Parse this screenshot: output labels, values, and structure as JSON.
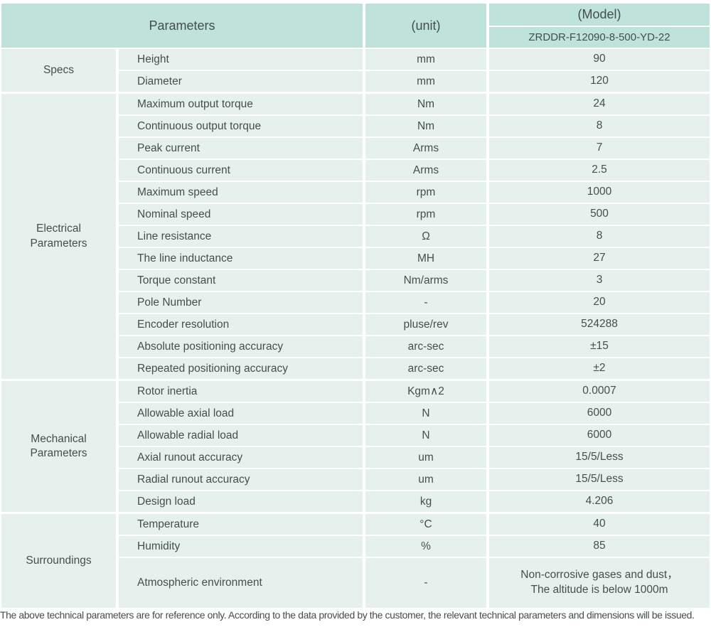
{
  "colors": {
    "header_bg": "#bfe2da",
    "cell_bg": "#e6f1ee",
    "page_bg": "#ffffff",
    "text": "#454e4c"
  },
  "header": {
    "parameters_label": "Parameters",
    "unit_label": "(unit)",
    "model_label": "(Model)",
    "model_value": "ZRDDR-F12090-8-500-YD-22"
  },
  "sections": [
    {
      "name": "Specs",
      "rows": [
        {
          "param": "Height",
          "unit": "mm",
          "value": "90"
        },
        {
          "param": "Diameter",
          "unit": "mm",
          "value": "120"
        }
      ]
    },
    {
      "name": "Electrical Parameters",
      "rows": [
        {
          "param": "Maximum output torque",
          "unit": "Nm",
          "value": "24"
        },
        {
          "param": "Continuous output torque",
          "unit": "Nm",
          "value": "8"
        },
        {
          "param": "Peak current",
          "unit": "Arms",
          "value": "7"
        },
        {
          "param": "Continuous current",
          "unit": "Arms",
          "value": "2.5"
        },
        {
          "param": "Maximum speed",
          "unit": "rpm",
          "value": "1000"
        },
        {
          "param": "Nominal speed",
          "unit": "rpm",
          "value": "500"
        },
        {
          "param": "Line resistance",
          "unit": "Ω",
          "value": "8"
        },
        {
          "param": "The line inductance",
          "unit": "MH",
          "value": "27"
        },
        {
          "param": "Torque constant",
          "unit": "Nm/arms",
          "value": "3"
        },
        {
          "param": "Pole Number",
          "unit": "-",
          "value": "20"
        },
        {
          "param": "Encoder resolution",
          "unit": "pluse/rev",
          "value": "524288"
        },
        {
          "param": "Absolute positioning accuracy",
          "unit": "arc-sec",
          "value": "±15"
        },
        {
          "param": "Repeated positioning accuracy",
          "unit": "arc-sec",
          "value": "±2"
        }
      ]
    },
    {
      "name": "Mechanical Parameters",
      "rows": [
        {
          "param": "Rotor inertia",
          "unit": "Kgm∧2",
          "value": "0.0007"
        },
        {
          "param": "Allowable axial load",
          "unit": "N",
          "value": "6000"
        },
        {
          "param": "Allowable radial load",
          "unit": "N",
          "value": "6000"
        },
        {
          "param": "Axial runout accuracy",
          "unit": "um",
          "value": "15/5/Less"
        },
        {
          "param": "Radial runout accuracy",
          "unit": "um",
          "value": "15/5/Less"
        },
        {
          "param": "Design load",
          "unit": "kg",
          "value": "4.206"
        }
      ]
    },
    {
      "name": "Surroundings",
      "rows": [
        {
          "param": "Temperature",
          "unit": "°C",
          "value": "40"
        },
        {
          "param": "Humidity",
          "unit": "%",
          "value": "85"
        },
        {
          "param": "Atmospheric environment",
          "unit": "-",
          "value": "Non-corrosive gases and dust，\nThe altitude is below 1000m"
        }
      ]
    }
  ],
  "footer": {
    "note": "The above technical parameters are for reference only. According to the data provided by the customer, the relevant technical parameters and dimensions will be issued."
  }
}
